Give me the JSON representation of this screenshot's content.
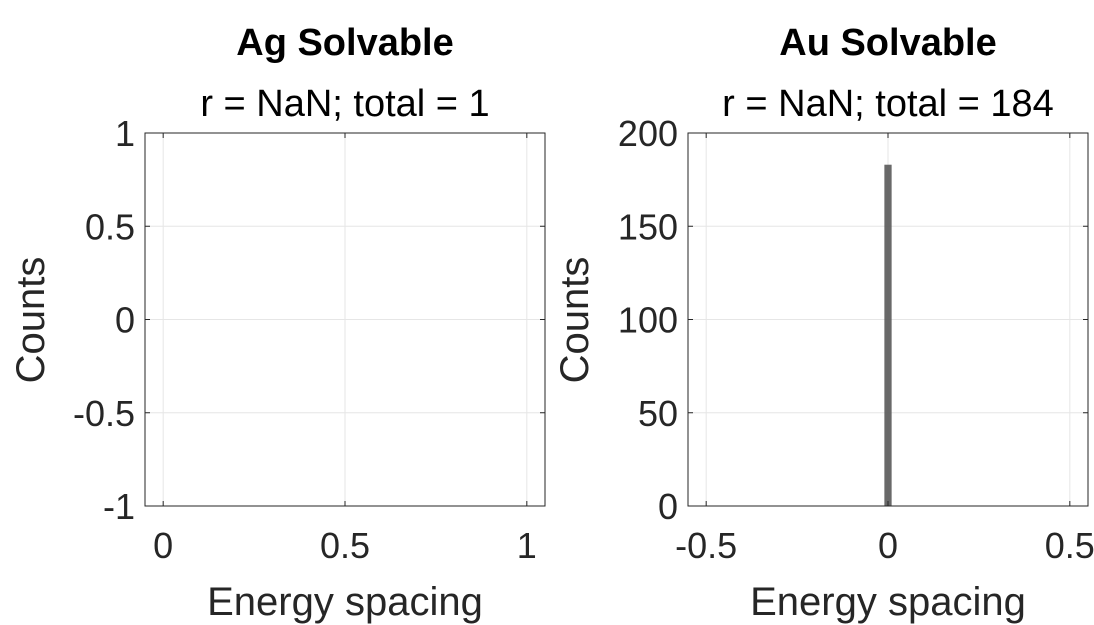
{
  "chart_data": [
    {
      "type": "bar",
      "title": "Ag Solvable",
      "subtitle": "r = NaN; total = 1",
      "xlabel": "Energy spacing",
      "ylabel": "Counts",
      "xlim": [
        -0.05,
        1.05
      ],
      "ylim": [
        -1,
        1
      ],
      "xticks": [
        0,
        0.5,
        1
      ],
      "xtick_labels": [
        "0",
        "0.5",
        "1"
      ],
      "yticks": [
        -1,
        -0.5,
        0,
        0.5,
        1
      ],
      "ytick_labels": [
        "-1",
        "-0.5",
        "0",
        "0.5",
        "1"
      ],
      "grid": true,
      "bins": [],
      "bar_color": "#595959"
    },
    {
      "type": "bar",
      "title": "Au Solvable",
      "subtitle": "r = NaN; total = 184",
      "xlabel": "Energy spacing",
      "ylabel": "Counts",
      "xlim": [
        -0.55,
        0.55
      ],
      "ylim": [
        0,
        200
      ],
      "xticks": [
        -0.5,
        0,
        0.5
      ],
      "xtick_labels": [
        "-0.5",
        "0",
        "0.5"
      ],
      "yticks": [
        0,
        50,
        100,
        150,
        200
      ],
      "ytick_labels": [
        "0",
        "50",
        "100",
        "150",
        "200"
      ],
      "grid": true,
      "bins": [
        {
          "x0": -0.01,
          "x1": 0.01,
          "count": 183
        }
      ],
      "bar_color": "#595959"
    }
  ]
}
